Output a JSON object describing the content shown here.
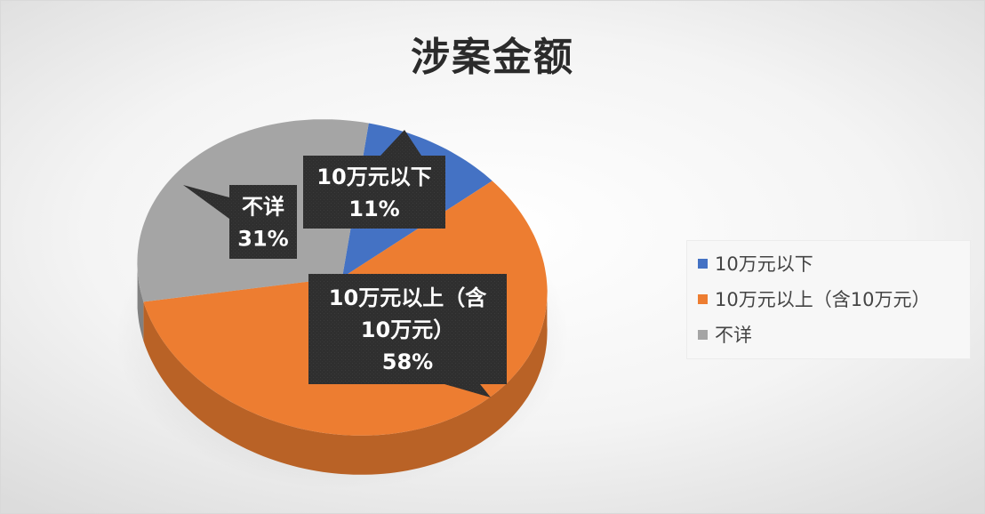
{
  "chart_data": {
    "type": "pie",
    "title": "涉案金额",
    "slices": [
      {
        "name": "10万元以下",
        "value": 11,
        "label": "11%",
        "color": "#4472C4"
      },
      {
        "name": "10万元以上（含10万元）",
        "value": 58,
        "label": "58%",
        "color": "#ED7D31"
      },
      {
        "name": "不详",
        "value": 31,
        "label": "31%",
        "color": "#A5A5A5"
      }
    ],
    "callouts": [
      {
        "lines": [
          "10万元以下",
          "11%"
        ]
      },
      {
        "lines": [
          "10万元以上（含",
          "10万元）",
          "58%"
        ]
      },
      {
        "lines": [
          "不详",
          "31%"
        ]
      }
    ],
    "legend": {
      "position": "right",
      "items": [
        "10万元以下",
        "10万元以上（含10万元）",
        "不详"
      ]
    }
  }
}
